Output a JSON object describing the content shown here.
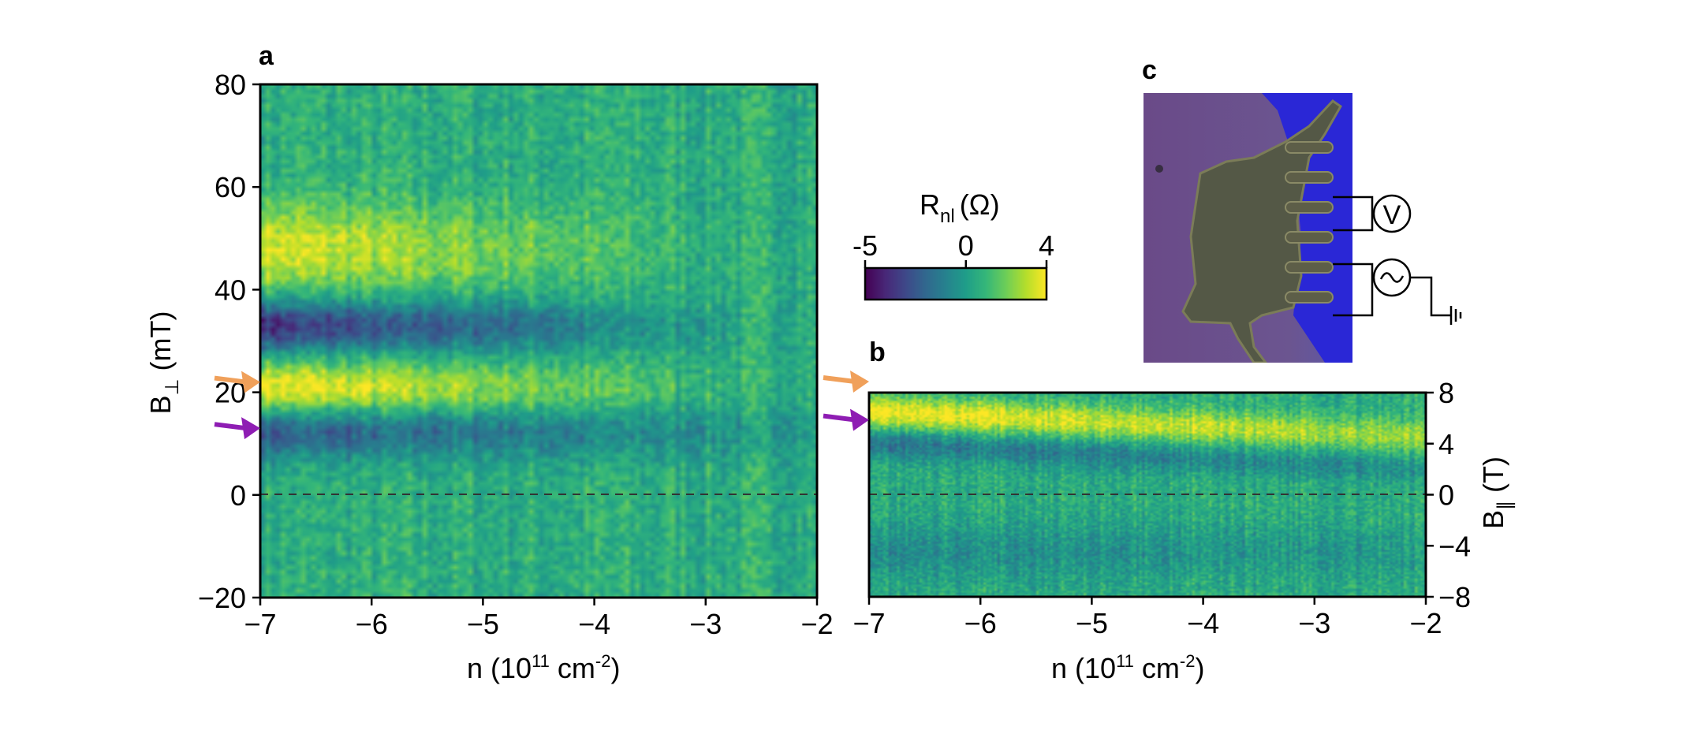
{
  "panels": {
    "a": "a",
    "b": "b",
    "c": "c"
  },
  "colorbar": {
    "label_main": "R",
    "label_sub": "nl",
    "label_unit": "(Ω)",
    "min": -5,
    "max": 4,
    "ticks": [
      "-5",
      "0",
      "4"
    ],
    "colormap": "viridis"
  },
  "chart_data": [
    {
      "panel": "a",
      "type": "heatmap",
      "xlabel": {
        "main": "n (10",
        "sup1": "11",
        "mid": " cm",
        "sup2": "-2",
        "end": ")"
      },
      "ylabel": {
        "main": "B",
        "sub": "⊥",
        "unit": " (mT)"
      },
      "xlim": [
        -7,
        -2
      ],
      "ylim": [
        -20,
        80
      ],
      "xticks": [
        "−7",
        "−6",
        "−5",
        "−4",
        "−3",
        "−2"
      ],
      "yticks": [
        "−20",
        "0",
        "20",
        "40",
        "60",
        "80"
      ],
      "dashed_zero_line": true,
      "features": [
        {
          "kind": "maximum",
          "center_y": 48,
          "width": 6,
          "amplitude": 3.0,
          "fades_toward_x": -4.3
        },
        {
          "kind": "minimum",
          "center_y": 33,
          "width": 3.5,
          "amplitude": -4.5,
          "fades_toward_x": -4.0
        },
        {
          "kind": "maximum",
          "center_y": 21,
          "width": 3.5,
          "amplitude": 3.5,
          "fades_toward_x": -4.0
        },
        {
          "kind": "minimum",
          "center_y": 12,
          "width": 3.5,
          "amplitude": -3.0,
          "fades_toward_x": -2.5
        }
      ],
      "markers": [
        {
          "color": "#f0a05a",
          "y": 22,
          "label": "orange arrow"
        },
        {
          "color": "#8e1db3",
          "y": 13,
          "label": "purple arrow"
        }
      ]
    },
    {
      "panel": "b",
      "type": "heatmap",
      "xlabel": {
        "main": "n (10",
        "sup1": "11",
        "mid": " cm",
        "sup2": "-2",
        "end": ")"
      },
      "ylabel": {
        "main": "B",
        "sub": "∥",
        "unit": " (T)"
      },
      "xlim": [
        -7,
        -2
      ],
      "ylim": [
        -8,
        8
      ],
      "xticks": [
        "−7",
        "−6",
        "−5",
        "−4",
        "−3",
        "−2"
      ],
      "yticks": [
        "8",
        "4",
        "0",
        "−4",
        "−8"
      ],
      "dashed_zero_line": true,
      "features": [
        {
          "kind": "maximum",
          "center_y_start": 6.5,
          "center_y_end": 4.5,
          "width": 0.9,
          "amplitude": 3.5
        },
        {
          "kind": "minimum",
          "center_y_start": 4.0,
          "center_y_end": 2.0,
          "width": 0.8,
          "amplitude": -2.0
        },
        {
          "kind": "minimum",
          "center_y": -4.5,
          "width": 1.5,
          "amplitude": -1.2
        }
      ],
      "markers": [
        {
          "color": "#f0a05a",
          "y": 8,
          "label": "orange arrow"
        },
        {
          "color": "#8e1db3",
          "y": 5,
          "label": "purple arrow"
        }
      ]
    }
  ],
  "device": {
    "voltmeter_symbol": "V",
    "source_symbol": "~",
    "colors": {
      "substrate": "#6a4f86",
      "flake": "#545846",
      "contacts": "#2a25d8",
      "ground_line": "#000000"
    }
  }
}
